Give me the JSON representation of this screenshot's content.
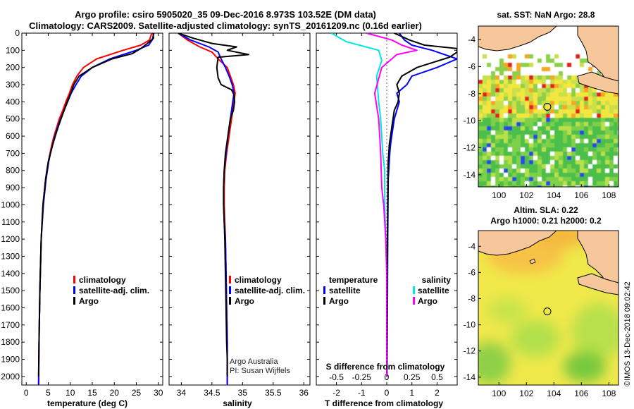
{
  "header": {
    "title_line1": "Argo profile: csiro 5905020_35 09-Dec-2016 8.973S 103.52E (DM data)",
    "title_line2": "Climatology: CARS2009. Satellite-adjusted climatology: synTS_20161209.nc (0.16d earlier)"
  },
  "colors": {
    "climatology": "#ff0000",
    "satellite_adjusted": "#0000ff",
    "argo": "#000000",
    "salinity_argo": "#ff00ff",
    "salinity_satellite": "#00e5e5"
  },
  "shared_y_ticks": [
    "0",
    "100",
    "200",
    "300",
    "400",
    "500",
    "600",
    "700",
    "800",
    "900",
    "1000",
    "1100",
    "1200",
    "1300",
    "1400",
    "1500",
    "1600",
    "1700",
    "1800",
    "1900",
    "2000"
  ],
  "chart_data": [
    {
      "type": "line",
      "xlabel": "temperature (deg C)",
      "xlim": [
        -1,
        31
      ],
      "ylim": [
        2050,
        0
      ],
      "x_ticks": [
        "0",
        "5",
        "10",
        "15",
        "20",
        "25",
        "30"
      ],
      "legend": [
        "climatology",
        "satellite-adj. clim.",
        "Argo"
      ],
      "series": [
        {
          "name": "climatology",
          "color": "#ff0000",
          "x": [
            28.5,
            28.0,
            26.0,
            22.0,
            16.0,
            13.0,
            11.5,
            10.5,
            9.8,
            9.0,
            8.3,
            7.5,
            6.9,
            6.3,
            5.8,
            5.4,
            5.0,
            4.7,
            4.4,
            3.8,
            3.4,
            3.1,
            2.9,
            2.8
          ],
          "y": [
            0,
            40,
            70,
            100,
            150,
            200,
            250,
            300,
            350,
            400,
            450,
            500,
            550,
            600,
            650,
            700,
            750,
            800,
            850,
            1000,
            1200,
            1500,
            1800,
            2050
          ]
        },
        {
          "name": "satellite-adj. clim.",
          "color": "#0000ff",
          "x": [
            29.0,
            28.6,
            27.8,
            25.0,
            19.0,
            15.0,
            12.5,
            11.3,
            10.2,
            9.4,
            8.6,
            7.8,
            7.1,
            6.5,
            6.0,
            5.5,
            5.1,
            4.8,
            4.5,
            3.9,
            3.4,
            3.1,
            2.9,
            2.8
          ],
          "y": [
            0,
            40,
            70,
            100,
            150,
            200,
            250,
            300,
            350,
            400,
            450,
            500,
            550,
            600,
            650,
            700,
            750,
            800,
            850,
            1000,
            1200,
            1500,
            1800,
            2050
          ]
        },
        {
          "name": "Argo",
          "color": "#000000",
          "x": [
            28.8,
            28.9,
            27.5,
            26.0,
            24.0,
            19.5,
            15.0,
            12.0,
            10.8,
            10.1,
            9.3,
            8.6,
            7.9,
            7.2,
            6.6,
            6.0,
            5.5,
            5.0,
            4.7,
            4.4,
            3.8,
            3.4,
            3.1,
            2.9,
            2.8
          ],
          "y": [
            0,
            30,
            60,
            90,
            120,
            150,
            200,
            250,
            300,
            350,
            400,
            450,
            500,
            550,
            600,
            650,
            700,
            750,
            800,
            850,
            1000,
            1200,
            1500,
            1800,
            2000
          ]
        }
      ]
    },
    {
      "type": "line",
      "xlabel": "salinity",
      "xlim": [
        33.8,
        36.1
      ],
      "ylim": [
        2050,
        0
      ],
      "x_ticks": [
        "34",
        "34.5",
        "35",
        "35.5",
        "36"
      ],
      "legend": [
        "climatology",
        "satellite-adj. clim.",
        "Argo"
      ],
      "annotations": [
        "Argo Australia",
        "PI: Susan Wijffels"
      ],
      "series": [
        {
          "name": "climatology",
          "color": "#ff0000",
          "x": [
            33.95,
            34.1,
            34.3,
            34.5,
            34.6,
            34.75,
            34.8,
            34.85,
            34.88,
            34.86,
            34.82,
            34.78,
            34.74,
            34.71,
            34.7,
            34.7,
            34.71,
            34.72,
            34.73,
            34.74,
            34.75,
            34.75
          ],
          "y": [
            0,
            40,
            80,
            110,
            150,
            200,
            250,
            300,
            350,
            400,
            500,
            600,
            700,
            800,
            900,
            1000,
            1100,
            1200,
            1400,
            1600,
            1800,
            2050
          ]
        },
        {
          "name": "satellite-adj. clim.",
          "color": "#0000ff",
          "x": [
            33.95,
            34.15,
            34.45,
            34.6,
            34.65,
            34.72,
            34.78,
            34.83,
            34.86,
            34.84,
            34.8,
            34.76,
            34.73,
            34.7,
            34.69,
            34.69,
            34.7,
            34.72,
            34.73,
            34.74,
            34.75,
            34.75
          ],
          "y": [
            0,
            40,
            80,
            110,
            150,
            200,
            250,
            300,
            350,
            400,
            500,
            600,
            700,
            800,
            900,
            1000,
            1100,
            1200,
            1400,
            1600,
            1800,
            2050
          ]
        },
        {
          "name": "Argo",
          "color": "#000000",
          "x": [
            33.95,
            34.2,
            34.5,
            34.9,
            34.75,
            35.1,
            34.6,
            34.58,
            34.6,
            34.65,
            34.82,
            34.86,
            34.87,
            34.85,
            34.8,
            34.76,
            34.72,
            34.7,
            34.69,
            34.69,
            34.7,
            34.71,
            34.72,
            34.73,
            34.74,
            34.75,
            34.75
          ],
          "y": [
            0,
            30,
            60,
            80,
            100,
            125,
            140,
            200,
            260,
            300,
            330,
            360,
            400,
            450,
            500,
            600,
            700,
            800,
            900,
            1000,
            1100,
            1200,
            1400,
            1600,
            1800,
            1900,
            2000
          ]
        }
      ]
    },
    {
      "type": "line",
      "xlabel": "T difference from climatology",
      "xlabel_top": "S difference from climatology",
      "xlim": [
        -2.8,
        2.8
      ],
      "ylim": [
        2050,
        0
      ],
      "x_ticks": [
        "-2",
        "-1",
        "0",
        "1",
        "2"
      ],
      "x_ticks_top": [
        "-0.5",
        "-0.25",
        "0",
        "0.25",
        "0.5"
      ],
      "legend_left_title": "temperature",
      "legend_right_title": "salinity",
      "legend_left": [
        "satellite",
        "Argo"
      ],
      "legend_right": [
        "satellite",
        "Argo"
      ],
      "series": [
        {
          "name": "temperature satellite",
          "color": "#0000ff",
          "x": [
            0.5,
            0.7,
            1.0,
            1.8,
            2.8,
            2.0,
            1.0,
            0.8,
            0.4,
            0.5,
            0.4,
            0.3,
            0.25,
            0.2,
            0.15,
            0.12,
            0.1,
            0.08,
            0.06,
            0.05,
            0.04,
            0.03,
            0.02,
            0.01
          ],
          "y": [
            0,
            40,
            70,
            100,
            150,
            200,
            250,
            300,
            350,
            400,
            450,
            500,
            550,
            600,
            650,
            700,
            750,
            800,
            850,
            1000,
            1200,
            1500,
            1800,
            2000
          ]
        },
        {
          "name": "temperature Argo",
          "color": "#000000",
          "x": [
            0.3,
            0.9,
            1.5,
            2.8,
            2.8,
            2.5,
            1.2,
            0.6,
            0.4,
            0.5,
            0.45,
            0.3,
            0.25,
            0.2,
            0.15,
            0.1,
            0.08,
            0.06,
            0.05,
            0.04,
            0.03,
            0.02,
            0.01,
            0.0
          ],
          "y": [
            0,
            40,
            70,
            90,
            110,
            140,
            200,
            250,
            300,
            350,
            400,
            450,
            500,
            550,
            600,
            650,
            700,
            750,
            800,
            1000,
            1200,
            1500,
            1800,
            2000
          ]
        },
        {
          "name": "salinity satellite",
          "color": "#00e5e5",
          "x": [
            -0.55,
            -0.4,
            -0.08,
            -0.05,
            -0.1,
            -0.08,
            -0.06,
            -0.05,
            -0.04,
            -0.02,
            -0.02,
            -0.01,
            0.0,
            0.0,
            0.0
          ],
          "y": [
            0,
            50,
            100,
            160,
            250,
            400,
            500,
            600,
            700,
            800,
            1000,
            1200,
            1400,
            1700,
            2000
          ]
        },
        {
          "name": "salinity Argo",
          "color": "#ff00ff",
          "x": [
            -0.2,
            0.05,
            0.15,
            0.3,
            0.1,
            -0.05,
            -0.12,
            -0.08,
            -0.06,
            -0.05,
            -0.03,
            -0.01,
            0.0,
            0.0,
            0.0
          ],
          "y": [
            0,
            40,
            70,
            100,
            125,
            200,
            350,
            500,
            700,
            900,
            1000,
            1200,
            1400,
            1700,
            2000
          ]
        }
      ]
    }
  ],
  "maps": [
    {
      "title": "sat. SST: NaN Argo: 28.8",
      "x_ticks": [
        "100",
        "102",
        "104",
        "106",
        "108"
      ],
      "y_ticks": [
        "-4",
        "-6",
        "-8",
        "-10",
        "-12",
        "-14"
      ],
      "profile_location": {
        "lon": 103.52,
        "lat": -8.973
      }
    },
    {
      "title_line1": "Altim. SLA: 0.22",
      "title_line2": "Argo h1000: 0.21 h2000: 0.2",
      "x_ticks": [
        "100",
        "102",
        "104",
        "106",
        "108"
      ],
      "y_ticks": [
        "-4",
        "-6",
        "-8",
        "-10",
        "-12",
        "-14"
      ],
      "profile_location": {
        "lon": 103.52,
        "lat": -8.973
      }
    }
  ],
  "footer": {
    "credit": "©IMOS 13-Dec-2018 09:02:42"
  }
}
